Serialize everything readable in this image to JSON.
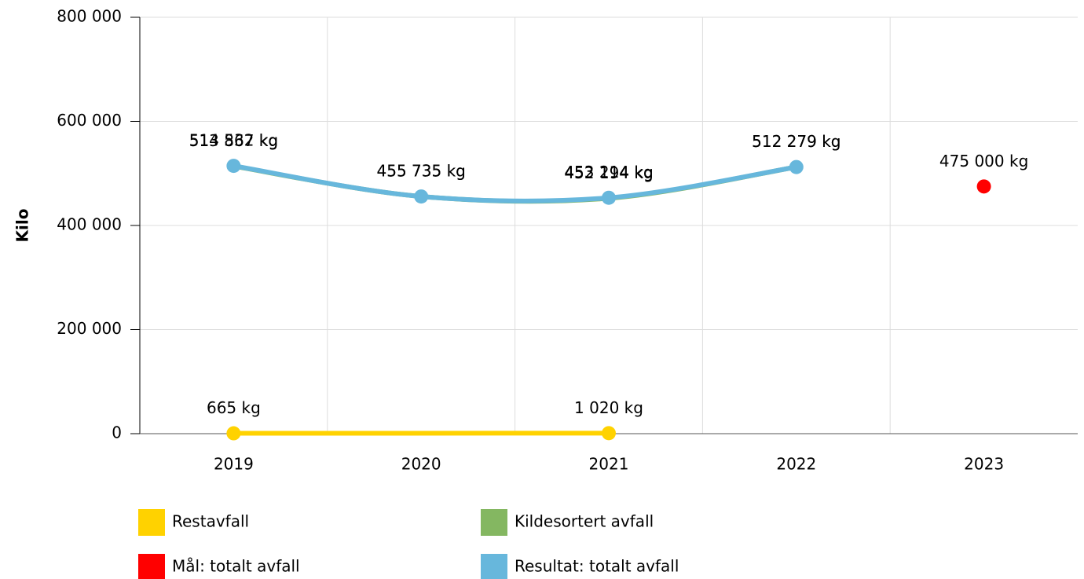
{
  "chart_data": {
    "type": "line",
    "y_label": "Kilo",
    "categories": [
      "2019",
      "2020",
      "2021",
      "2022",
      "2023"
    ],
    "ylim": [
      0,
      800000
    ],
    "yticks": [
      0,
      {
        "value": 200000,
        "label": "200 000"
      },
      {
        "value": 400000,
        "label": "400 000"
      },
      {
        "value": 600000,
        "label": "600 000"
      },
      {
        "value": 800000,
        "label": "800 000"
      }
    ],
    "grid": true,
    "connect_nulls": true,
    "legend": "bottom",
    "series": [
      {
        "name": "Restavfall",
        "color": "#ffd200",
        "values": [
          665,
          null,
          1020,
          null,
          null
        ],
        "value_labels": [
          "665 kg",
          null,
          "1 020 kg",
          null,
          null
        ],
        "line": true,
        "smooth": false
      },
      {
        "name": "Kildesortert avfall",
        "color": "#84b761",
        "values": [
          513867,
          455735,
          452194,
          512279,
          null
        ],
        "value_labels": [
          "513 867 kg",
          "455 735 kg",
          "452 194 kg",
          "512 279 kg",
          null
        ],
        "line": true,
        "smooth": true,
        "markers": false
      },
      {
        "name": "Mål: totalt avfall",
        "color": "#ff0000",
        "values": [
          null,
          null,
          null,
          null,
          475000
        ],
        "value_labels": [
          null,
          null,
          null,
          null,
          "475 000 kg"
        ],
        "line": false
      },
      {
        "name": "Resultat: totalt avfall",
        "color": "#67b7dc",
        "values": [
          514532,
          455735,
          453214,
          512279,
          null
        ],
        "value_labels": [
          "514 532 kg",
          "455 735 kg",
          "453 214 kg",
          "512 279 kg",
          null
        ],
        "line": true,
        "smooth": true
      }
    ]
  }
}
